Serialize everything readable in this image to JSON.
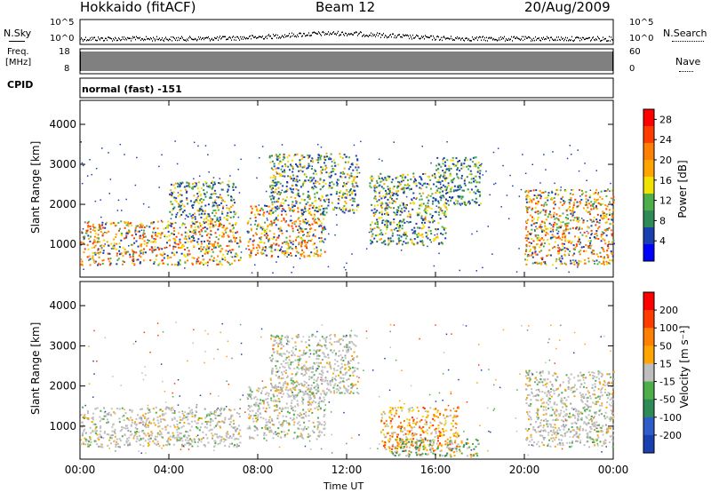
{
  "header": {
    "station": "Hokkaido (fitACF)",
    "beam": "Beam 12",
    "date": "20/Aug/2009"
  },
  "noise_panel": {
    "left_label": "N.Sky",
    "right_label": "N.Search",
    "tick_top": "10^5",
    "tick_bottom": "10^0"
  },
  "freq_panel": {
    "left_label_top": "Freq.",
    "left_label_bottom": "[MHz]",
    "left_tick_top": "18",
    "left_tick_bottom": "8",
    "right_label": "Nave",
    "right_tick_top": "60",
    "right_tick_bottom": "0"
  },
  "cpid": {
    "label": "CPID",
    "mode_text": "normal (fast) -151"
  },
  "colors": {
    "background": "#ffffff",
    "axis": "#000000",
    "scatter_blue": "#1a3fb0",
    "scatter_green": "#2e8b57",
    "scatter_orange": "#ff8c00",
    "scatter_red": "#e31a1c"
  },
  "chart_data": [
    {
      "type": "heatmap",
      "title": "",
      "ylabel": "Slant Range [km]",
      "xlabel": "",
      "x_ticks": [
        "00:00",
        "04:00",
        "08:00",
        "12:00",
        "16:00",
        "20:00",
        "00:00"
      ],
      "y_ticks": [
        1000,
        2000,
        3000,
        4000
      ],
      "ylim": [
        180,
        4600
      ],
      "colorbar": {
        "label": "Power [dB]",
        "ticks": [
          4,
          8,
          12,
          16,
          20,
          24,
          28
        ],
        "range": [
          0,
          30
        ],
        "colors": [
          "#0000ff",
          "#1a3fb0",
          "#2e8b57",
          "#4daf4a",
          "#f2e200",
          "#ffa500",
          "#ff7f00",
          "#ff3b00",
          "#ff0000"
        ]
      },
      "regions": [
        {
          "t0": 0.0,
          "t1": 7.2,
          "r0": 500,
          "r1": 1600,
          "level": "high"
        },
        {
          "t0": 4.0,
          "t1": 7.0,
          "r0": 1600,
          "r1": 2600,
          "level": "mid"
        },
        {
          "t0": 7.5,
          "t1": 11.0,
          "r0": 700,
          "r1": 2000,
          "level": "high"
        },
        {
          "t0": 8.5,
          "t1": 12.5,
          "r0": 1800,
          "r1": 3300,
          "level": "mid"
        },
        {
          "t0": 13.0,
          "t1": 16.5,
          "r0": 1000,
          "r1": 2800,
          "level": "mid"
        },
        {
          "t0": 16.0,
          "t1": 18.0,
          "r0": 2000,
          "r1": 3200,
          "level": "low"
        },
        {
          "t0": 20.0,
          "t1": 24.0,
          "r0": 500,
          "r1": 2400,
          "level": "high"
        }
      ]
    },
    {
      "type": "heatmap",
      "title": "",
      "ylabel": "Slant Range [km]",
      "xlabel": "Time UT",
      "x_ticks": [
        "00:00",
        "04:00",
        "08:00",
        "12:00",
        "16:00",
        "20:00",
        "00:00"
      ],
      "y_ticks": [
        1000,
        2000,
        3000,
        4000
      ],
      "ylim": [
        180,
        4600
      ],
      "colorbar": {
        "label": "Velocity [m s⁻¹]",
        "ticks": [
          200,
          100,
          50,
          15,
          -15,
          -50,
          -100,
          -200
        ],
        "colors": [
          "#1a3fb0",
          "#2e5cc8",
          "#2e8b57",
          "#4daf4a",
          "#bebebe",
          "#ffa500",
          "#ff7f00",
          "#ff3b00",
          "#ff0000"
        ]
      },
      "regions": [
        {
          "t0": 0.0,
          "t1": 7.2,
          "r0": 500,
          "r1": 1500,
          "level": "grey"
        },
        {
          "t0": 7.5,
          "t1": 11.0,
          "r0": 700,
          "r1": 2000,
          "level": "grey"
        },
        {
          "t0": 8.5,
          "t1": 12.5,
          "r0": 1800,
          "r1": 3300,
          "level": "grey"
        },
        {
          "t0": 13.5,
          "t1": 17.0,
          "r0": 400,
          "r1": 1500,
          "level": "orange"
        },
        {
          "t0": 14.0,
          "t1": 18.0,
          "r0": 250,
          "r1": 700,
          "level": "green"
        },
        {
          "t0": 20.0,
          "t1": 24.0,
          "r0": 500,
          "r1": 2400,
          "level": "grey"
        }
      ]
    }
  ]
}
